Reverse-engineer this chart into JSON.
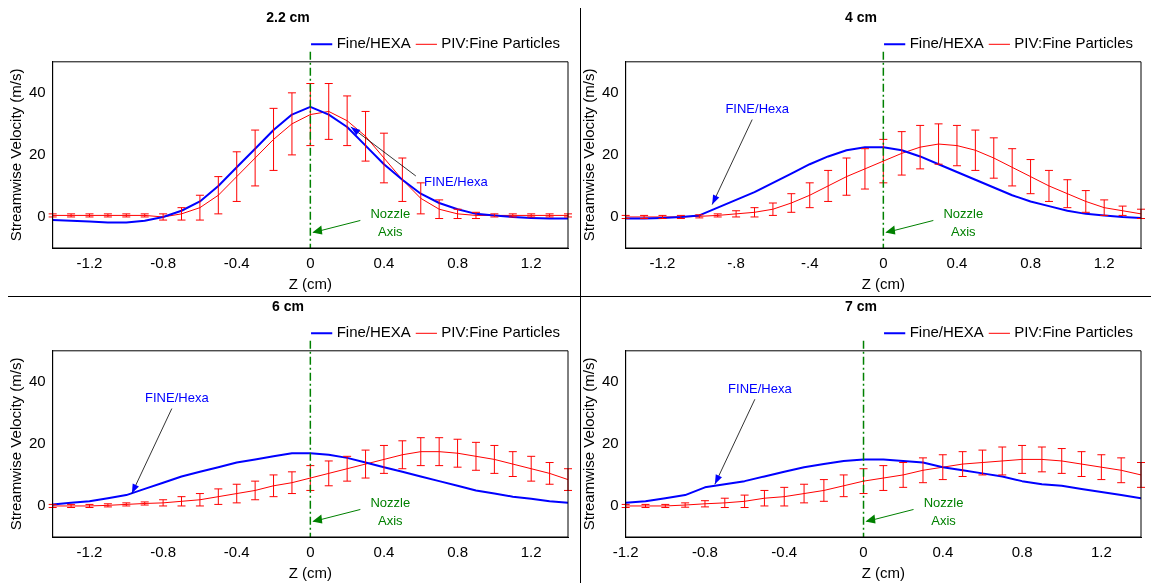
{
  "chart_data": [
    {
      "type": "line",
      "title": "2.2 cm",
      "xlabel": "Z (cm)",
      "ylabel": "Streamwise Velocity (m/s)",
      "xlim": [
        -1.4,
        1.4
      ],
      "xticks": [
        -1.2,
        -0.8,
        -0.4,
        0,
        0.4,
        0.8,
        1.2
      ],
      "ylim": [
        -10,
        50
      ],
      "yticks": [
        0,
        20,
        40
      ],
      "legend": "top right",
      "marker": "none",
      "line_style": "solid",
      "x": [
        -1.4,
        -1.3,
        -1.2,
        -1.1,
        -1.0,
        -0.9,
        -0.8,
        -0.7,
        -0.6,
        -0.5,
        -0.4,
        -0.3,
        -0.2,
        -0.1,
        0,
        0.1,
        0.2,
        0.3,
        0.4,
        0.5,
        0.6,
        0.7,
        0.8,
        0.9,
        1.0,
        1.1,
        1.2,
        1.3,
        1.4
      ],
      "series": [
        {
          "name": "Fine/HEXA",
          "color": "#0000ff",
          "values": [
            -1,
            -1.2,
            -1.5,
            -1.8,
            -1.8,
            -1.2,
            0,
            2,
            5,
            10,
            16,
            22,
            28,
            33,
            35.5,
            33,
            29,
            23,
            17,
            12,
            7.5,
            4.5,
            2.5,
            1,
            0.5,
            0,
            -0.3,
            -0.5,
            -0.5
          ]
        },
        {
          "name": "PIV:Fine Particles",
          "color": "#ff0000",
          "values": [
            0.5,
            0.5,
            0.5,
            0.5,
            0.5,
            0.5,
            0,
            1,
            3,
            7,
            13,
            19,
            25,
            30,
            33,
            34,
            31,
            26,
            19,
            12,
            6,
            2.5,
            1,
            0.5,
            0.5,
            0.5,
            0.5,
            0.5,
            0.5
          ],
          "errors": [
            0.5,
            0.5,
            0.5,
            0.5,
            0.5,
            0.5,
            1,
            2,
            4,
            6,
            8,
            9,
            10,
            10,
            10,
            9,
            8,
            8,
            8,
            7,
            5,
            3,
            1.5,
            1,
            0.5,
            0.5,
            0.5,
            0.5,
            0.5
          ]
        }
      ],
      "ref_lines": [
        {
          "axis": "x",
          "value": 0,
          "label": "Nozzle Axis",
          "color": "#008000",
          "line_style": "dashdot"
        }
      ],
      "annotations": [
        {
          "text": "FINE/Hexa",
          "x": 0.22,
          "y": 29
        }
      ]
    },
    {
      "type": "line",
      "title": "4 cm",
      "xlabel": "Z (cm)",
      "ylabel": "Streamwise Velocity (m/s)",
      "xlim": [
        -1.4,
        1.4
      ],
      "xticks": [
        -1.2,
        {
          "value": -0.8,
          "label": "-.8"
        },
        {
          "value": -0.4,
          "label": "-.4"
        },
        0,
        0.4,
        0.8,
        1.2
      ],
      "ylim": [
        -10,
        50
      ],
      "yticks": [
        0,
        20,
        40
      ],
      "legend": "top right",
      "marker": "none",
      "line_style": "solid",
      "x": [
        -1.4,
        -1.3,
        -1.2,
        -1.1,
        -1.0,
        -0.9,
        -0.8,
        -0.7,
        -0.6,
        -0.5,
        -0.4,
        -0.3,
        -0.2,
        -0.1,
        0,
        0.1,
        0.2,
        0.3,
        0.4,
        0.5,
        0.6,
        0.7,
        0.8,
        0.9,
        1.0,
        1.1,
        1.2,
        1.3,
        1.4
      ],
      "series": [
        {
          "name": "Fine/HEXA",
          "color": "#0000ff",
          "values": [
            -0.5,
            -0.5,
            -0.3,
            0,
            0.5,
            3,
            5.5,
            8,
            11,
            14,
            17,
            19.5,
            21.5,
            22.5,
            22.5,
            21.5,
            19.5,
            17,
            14.5,
            12,
            9.5,
            7,
            5,
            3.5,
            2,
            1,
            0.5,
            0,
            -0.3
          ]
        },
        {
          "name": "PIV:Fine Particles",
          "color": "#ff0000",
          "values": [
            0,
            0,
            0,
            0,
            0.2,
            0.5,
            1,
            1.5,
            2.5,
            4.5,
            7,
            10,
            13,
            15.5,
            18,
            20.5,
            22.5,
            23.5,
            23,
            21.5,
            19,
            16,
            13,
            10,
            7.5,
            5,
            3,
            2,
            1
          ],
          "errors": [
            0.5,
            0.5,
            0.5,
            0.5,
            0.5,
            0.5,
            1,
            1.5,
            2,
            3,
            4,
            5,
            6,
            6.5,
            7,
            7,
            7,
            6.5,
            6.5,
            6.5,
            6.5,
            6,
            5.5,
            5,
            4.5,
            3.5,
            2.5,
            1.5,
            1.5
          ]
        }
      ],
      "ref_lines": [
        {
          "axis": "x",
          "value": 0,
          "label": "Nozzle Axis",
          "color": "#008000",
          "line_style": "dashdot"
        }
      ],
      "annotations": [
        {
          "text": "FINE/Hexa",
          "x": -0.93,
          "y": 4
        }
      ]
    },
    {
      "type": "line",
      "title": "6 cm",
      "xlabel": "Z (cm)",
      "ylabel": "Streamwise Velocity (m/s)",
      "xlim": [
        -1.4,
        1.4
      ],
      "xticks": [
        -1.2,
        -0.8,
        -0.4,
        0,
        0.4,
        0.8,
        1.2
      ],
      "ylim": [
        -10,
        50
      ],
      "yticks": [
        0,
        20,
        40
      ],
      "legend": "top right",
      "marker": "none",
      "line_style": "solid",
      "x": [
        -1.4,
        -1.3,
        -1.2,
        -1.1,
        -1.0,
        -0.9,
        -0.8,
        -0.7,
        -0.6,
        -0.5,
        -0.4,
        -0.3,
        -0.2,
        -0.1,
        0,
        0.1,
        0.2,
        0.3,
        0.4,
        0.5,
        0.6,
        0.7,
        0.8,
        0.9,
        1.0,
        1.1,
        1.2,
        1.3,
        1.4
      ],
      "series": [
        {
          "name": "Fine/HEXA",
          "color": "#0000ff",
          "values": [
            0.5,
            1,
            1.5,
            2.5,
            3.5,
            5.5,
            7.5,
            9.5,
            11,
            12.5,
            14,
            15,
            16,
            17,
            17,
            16.5,
            15.5,
            14,
            12.5,
            11,
            9.5,
            8,
            6.5,
            5,
            4,
            3,
            2.3,
            1.5,
            1
          ]
        },
        {
          "name": "PIV:Fine Particles",
          "color": "#ff0000",
          "values": [
            0,
            0,
            0,
            0.2,
            0.5,
            0.8,
            1,
            1.5,
            2,
            3,
            4,
            5,
            6.5,
            7.5,
            9,
            10.5,
            12,
            13.5,
            15,
            16.5,
            17.5,
            17.5,
            17,
            16,
            15,
            13.5,
            12,
            10.5,
            8.5
          ],
          "errors": [
            0.5,
            0.5,
            0.5,
            0.5,
            0.5,
            0.5,
            1,
            1.5,
            2,
            2.5,
            3,
            3,
            3.5,
            3.5,
            4,
            4,
            4,
            4.5,
            4.5,
            4.5,
            4.5,
            4.5,
            4.5,
            4.5,
            4.5,
            4,
            4,
            3.5,
            3.5
          ]
        }
      ],
      "ref_lines": [
        {
          "axis": "x",
          "value": 0,
          "label": "Nozzle Axis",
          "color": "#008000",
          "line_style": "dashdot"
        }
      ],
      "annotations": [
        {
          "text": "FINE/Hexa",
          "x": -0.97,
          "y": 4
        }
      ]
    },
    {
      "type": "line",
      "title": "7 cm",
      "xlabel": "Z (cm)",
      "ylabel": "Streamwise Velocity (m/s)",
      "xlim": [
        -1.2,
        1.4
      ],
      "xticks": [
        -1.2,
        -0.8,
        -0.4,
        0,
        0.4,
        0.8,
        1.2
      ],
      "ylim": [
        -10,
        50
      ],
      "yticks": [
        0,
        20,
        40
      ],
      "legend": "top right",
      "marker": "none",
      "line_style": "solid",
      "x": [
        -1.2,
        -1.1,
        -1.0,
        -0.9,
        -0.8,
        -0.7,
        -0.6,
        -0.5,
        -0.4,
        -0.3,
        -0.2,
        -0.1,
        0,
        0.1,
        0.2,
        0.3,
        0.4,
        0.5,
        0.6,
        0.7,
        0.8,
        0.9,
        1.0,
        1.1,
        1.2,
        1.3,
        1.4
      ],
      "series": [
        {
          "name": "Fine/HEXA",
          "color": "#0000ff",
          "values": [
            1,
            1.5,
            2.5,
            3.5,
            6,
            7,
            8,
            9.5,
            11,
            12.5,
            13.5,
            14.5,
            15,
            15,
            14.5,
            14,
            12.5,
            11.5,
            10.5,
            9.5,
            8,
            7,
            6.5,
            5.5,
            4.5,
            3.5,
            2.5
          ]
        },
        {
          "name": "PIV:Fine Particles",
          "color": "#ff0000",
          "values": [
            0,
            0,
            0,
            0.3,
            0.7,
            1,
            1.5,
            2.5,
            3,
            4,
            5,
            6.5,
            8,
            9,
            10,
            11.5,
            12.5,
            13.5,
            14,
            14.5,
            15,
            15,
            14.5,
            13.5,
            12.5,
            11.5,
            10
          ],
          "errors": [
            0.5,
            0.5,
            0.5,
            0.7,
            1,
            1.5,
            2,
            2.5,
            3,
            3,
            3.5,
            3.5,
            4,
            4,
            4,
            4,
            4,
            4,
            4,
            4.5,
            4.5,
            4,
            4,
            4,
            4,
            4,
            4
          ]
        }
      ],
      "ref_lines": [
        {
          "axis": "x",
          "value": 0,
          "label": "Nozzle Axis",
          "color": "#008000",
          "line_style": "dashdot"
        }
      ],
      "annotations": [
        {
          "text": "FINE/Hexa",
          "x": -0.75,
          "y": 7
        }
      ]
    }
  ]
}
